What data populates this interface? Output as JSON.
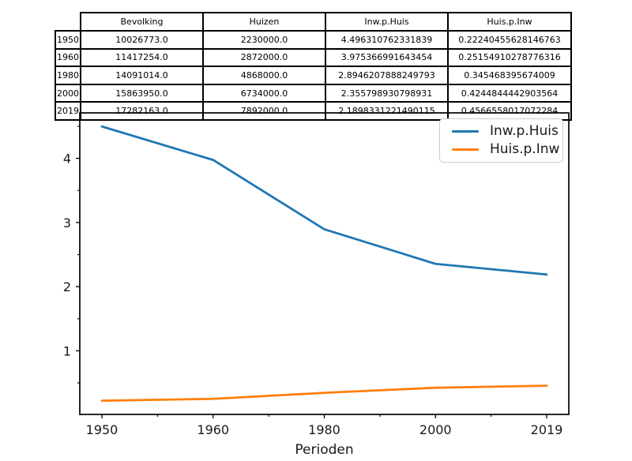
{
  "table": {
    "columns": [
      "Bevolking",
      "Huizen",
      "Inw.p.Huis",
      "Huis.p.Inw"
    ],
    "rows": [
      {
        "year": "1950",
        "cells": [
          "10026773.0",
          "2230000.0",
          "4.496310762331839",
          "0.22240455628146763"
        ]
      },
      {
        "year": "1960",
        "cells": [
          "11417254.0",
          "2872000.0",
          "3.975366991643454",
          "0.25154910278776316"
        ]
      },
      {
        "year": "1980",
        "cells": [
          "14091014.0",
          "4868000.0",
          "2.8946207888249793",
          "0.345468395674009"
        ]
      },
      {
        "year": "2000",
        "cells": [
          "15863950.0",
          "6734000.0",
          "2.355798930798931",
          "0.4244844442903564"
        ]
      },
      {
        "year": "2019",
        "cells": [
          "17282163.0",
          "7892000.0",
          "2.1898331221490115",
          "0.4566558017072284"
        ]
      }
    ]
  },
  "chart_data": {
    "type": "line",
    "categories": [
      "1950",
      "1960",
      "1980",
      "2000",
      "2019"
    ],
    "series": [
      {
        "name": "Inw.p.Huis",
        "color": "#1f77b4",
        "values": [
          4.496310762331839,
          3.975366991643454,
          2.8946207888249793,
          2.355798930798931,
          2.1898331221490115
        ]
      },
      {
        "name": "Huis.p.Inw",
        "color": "#ff7f0e",
        "values": [
          0.22240455628146763,
          0.25154910278776316,
          0.345468395674009,
          0.4244844442903564,
          0.4566558017072284
        ]
      }
    ],
    "title": "",
    "xlabel": "Perioden",
    "ylabel": "",
    "yticks": [
      1,
      2,
      3,
      4
    ],
    "yminorticks": [
      0.5,
      1.5,
      2.5,
      3.5,
      4.5
    ],
    "ylim": [
      0.0087,
      4.7087
    ],
    "grid": false,
    "legend_position": "upper right",
    "axis_color": "#000000",
    "text_color": "#1a1a1a"
  }
}
